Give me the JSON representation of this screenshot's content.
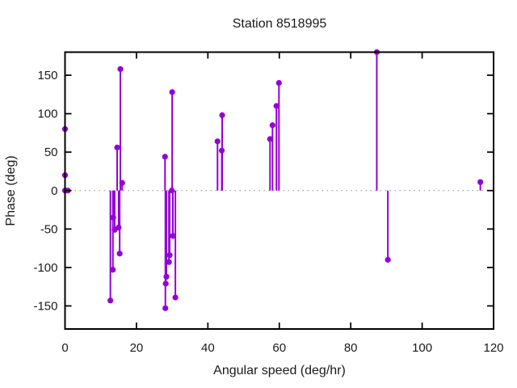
{
  "chart_data": {
    "type": "stem",
    "title": "Station 8518995",
    "xlabel": "Angular speed (deg/hr)",
    "ylabel": "Phase (deg)",
    "xlim": [
      0,
      120
    ],
    "ylim": [
      -180,
      180
    ],
    "xticks": [
      0,
      20,
      40,
      60,
      80,
      100,
      120
    ],
    "yticks": [
      -150,
      -100,
      -50,
      0,
      50,
      100,
      150
    ],
    "legend": "none",
    "grid": "dotted horizontal line at y=0 only",
    "series": [
      {
        "name": "phase",
        "color": "#9400d3",
        "marker": "filled-circle",
        "points": [
          {
            "x": 0,
            "y": 80
          },
          {
            "x": 0,
            "y": 20
          },
          {
            "x": 0,
            "y": 0
          },
          {
            "x": 0.8,
            "y": 0
          },
          {
            "x": 12.7,
            "y": -143
          },
          {
            "x": 13.4,
            "y": -103
          },
          {
            "x": 13.5,
            "y": -35
          },
          {
            "x": 13.9,
            "y": -51
          },
          {
            "x": 14.6,
            "y": 56
          },
          {
            "x": 15.0,
            "y": -48
          },
          {
            "x": 15.3,
            "y": -82
          },
          {
            "x": 15.5,
            "y": 158
          },
          {
            "x": 16.0,
            "y": 10
          },
          {
            "x": 28.0,
            "y": 44
          },
          {
            "x": 28.1,
            "y": -153
          },
          {
            "x": 28.2,
            "y": -121
          },
          {
            "x": 28.4,
            "y": -112
          },
          {
            "x": 29.1,
            "y": -93
          },
          {
            "x": 29.3,
            "y": -84
          },
          {
            "x": 29.9,
            "y": 0
          },
          {
            "x": 30.0,
            "y": 128
          },
          {
            "x": 30.2,
            "y": -59
          },
          {
            "x": 30.9,
            "y": -139
          },
          {
            "x": 42.7,
            "y": 64
          },
          {
            "x": 43.9,
            "y": 52
          },
          {
            "x": 44.0,
            "y": 98
          },
          {
            "x": 57.4,
            "y": 67
          },
          {
            "x": 58.1,
            "y": 85
          },
          {
            "x": 59.2,
            "y": 110
          },
          {
            "x": 59.9,
            "y": 140
          },
          {
            "x": 87.3,
            "y": 180
          },
          {
            "x": 90.4,
            "y": -90
          },
          {
            "x": 116.3,
            "y": 11
          }
        ]
      }
    ],
    "colors": {
      "series": "#9400d3",
      "border": "#000000",
      "zero_line": "#8a8a8a",
      "background": "#ffffff",
      "text": "#1a1a1a"
    }
  }
}
